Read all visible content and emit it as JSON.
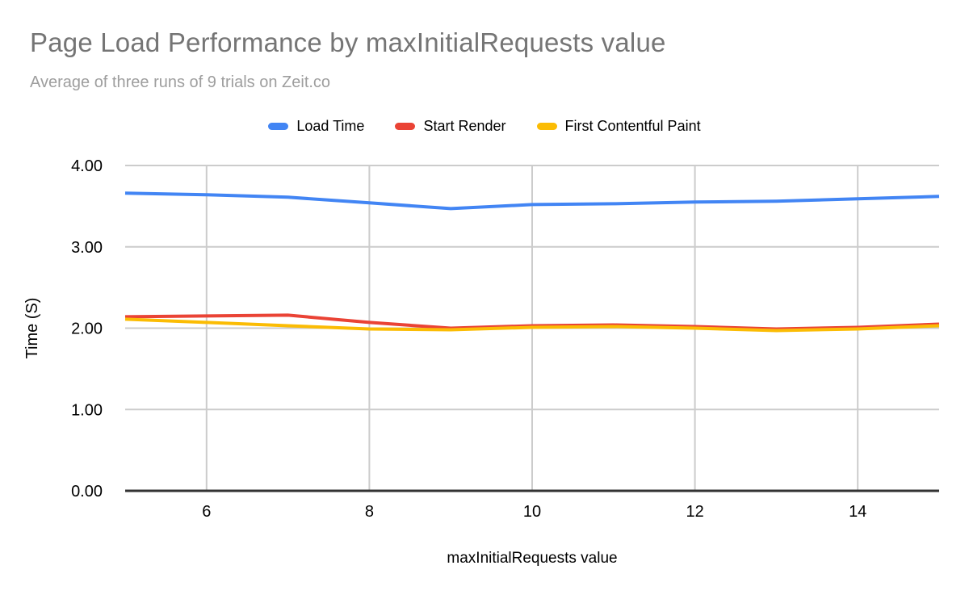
{
  "chart_data": {
    "type": "line",
    "title": "Page Load Performance by maxInitialRequests value",
    "subtitle": "Average of three runs of 9 trials on Zeit.co",
    "xlabel": "maxInitialRequests value",
    "ylabel": "Time (S)",
    "x": [
      5,
      6,
      7,
      8,
      9,
      10,
      11,
      12,
      13,
      14,
      15
    ],
    "series": [
      {
        "name": "Load Time",
        "color": "#4285f4",
        "values": [
          3.66,
          3.64,
          3.61,
          3.54,
          3.47,
          3.52,
          3.53,
          3.55,
          3.56,
          3.59,
          3.62
        ]
      },
      {
        "name": "Start Render",
        "color": "#ea4335",
        "values": [
          2.14,
          2.15,
          2.16,
          2.07,
          2.0,
          2.03,
          2.04,
          2.02,
          1.99,
          2.01,
          2.05
        ]
      },
      {
        "name": "First Contentful Paint",
        "color": "#fbbc04",
        "values": [
          2.11,
          2.07,
          2.03,
          1.99,
          1.98,
          2.01,
          2.02,
          2.0,
          1.97,
          1.99,
          2.03
        ]
      }
    ],
    "xlim": [
      5,
      15
    ],
    "ylim": [
      0,
      4
    ],
    "x_ticks": [
      6,
      8,
      10,
      12,
      14
    ],
    "y_ticks": [
      0,
      1,
      2,
      3,
      4
    ],
    "y_tick_labels": [
      "0.00",
      "1.00",
      "2.00",
      "3.00",
      "4.00"
    ],
    "grid": true,
    "legend_position": "top",
    "colors": {
      "title": "#757575",
      "subtitle": "#9e9e9e",
      "axis": "#333333",
      "gridline": "#cccccc",
      "tick_label": "#000000",
      "background": "#ffffff"
    }
  }
}
